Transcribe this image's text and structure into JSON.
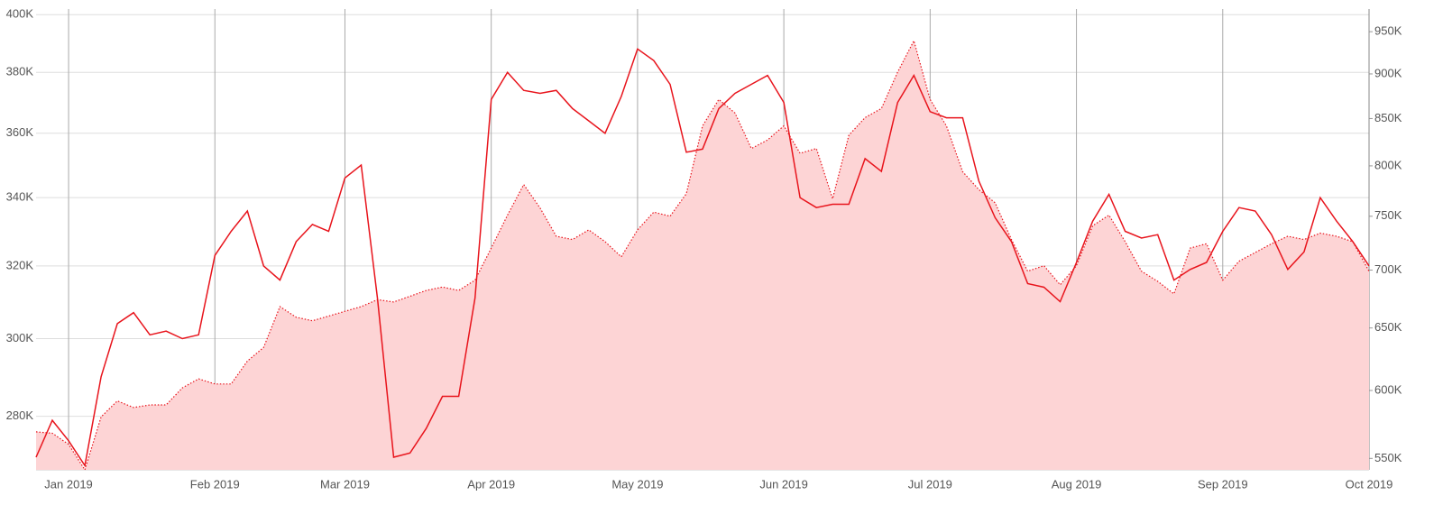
{
  "chart_data": {
    "type": "line",
    "categories": [
      null,
      null,
      "Jan 2019",
      null,
      null,
      null,
      null,
      null,
      null,
      null,
      null,
      "Feb 2019",
      null,
      null,
      null,
      null,
      null,
      null,
      null,
      "Mar 2019",
      null,
      null,
      null,
      null,
      null,
      null,
      null,
      null,
      "Apr 2019",
      null,
      null,
      null,
      null,
      null,
      null,
      null,
      null,
      "May 2019",
      null,
      null,
      null,
      null,
      null,
      null,
      null,
      null,
      "Jun 2019",
      null,
      null,
      null,
      null,
      null,
      null,
      null,
      null,
      "Jul 2019",
      null,
      null,
      null,
      null,
      null,
      null,
      null,
      null,
      "Aug 2019",
      null,
      null,
      null,
      null,
      null,
      null,
      null,
      null,
      "Sep 2019",
      null,
      null,
      null,
      null,
      null,
      null,
      null,
      null,
      "Oct 2019"
    ],
    "series": [
      {
        "type": "line",
        "color": "#e8141c",
        "values": [
          270000,
          279000,
          274000,
          268000,
          290000,
          304000,
          307000,
          301000,
          302000,
          300000,
          301000,
          323000,
          330000,
          336000,
          320000,
          316000,
          327000,
          332000,
          330000,
          346000,
          350000,
          311000,
          270000,
          271000,
          277000,
          285000,
          285000,
          311000,
          371000,
          380000,
          374000,
          373000,
          374000,
          368000,
          364000,
          360000,
          372000,
          388000,
          384000,
          376000,
          354000,
          355000,
          368000,
          373000,
          376000,
          379000,
          370000,
          340000,
          337000,
          338000,
          338000,
          352000,
          348000,
          370000,
          379000,
          367000,
          365000,
          365000,
          345000,
          334000,
          327000,
          315000,
          314000,
          310000,
          321000,
          333000,
          341000,
          330000,
          328000,
          329000,
          316000,
          319000,
          321000,
          330000,
          337000,
          336000,
          329000,
          319000,
          324000,
          340000,
          333000,
          327000,
          320000
        ]
      },
      {
        "type": "area",
        "axis": "y2",
        "color": "#e8141c",
        "fill": "#fdd4d5",
        "values": [
          569000,
          568000,
          560000,
          542000,
          580000,
          592000,
          587000,
          589000,
          589000,
          602000,
          609000,
          605000,
          605000,
          623000,
          634000,
          668000,
          659000,
          656000,
          660000,
          664000,
          668000,
          674000,
          672000,
          677000,
          682000,
          685000,
          682000,
          691000,
          720000,
          751000,
          781000,
          758000,
          731000,
          728000,
          737000,
          726000,
          712000,
          737000,
          754000,
          750000,
          772000,
          842000,
          871000,
          856000,
          818000,
          827000,
          842000,
          813000,
          818000,
          767000,
          832000,
          851000,
          861000,
          902000,
          939000,
          871000,
          842000,
          794000,
          776000,
          763000,
          728000,
          699000,
          704000,
          687000,
          704000,
          741000,
          751000,
          726000,
          699000,
          690000,
          679000,
          720000,
          724000,
          691000,
          708000,
          716000,
          724000,
          731000,
          728000,
          734000,
          731000,
          726000,
          699000
        ]
      }
    ],
    "ylim": [
      267000,
      402000
    ],
    "yticks": [
      {
        "value": 280000,
        "label": "280K"
      },
      {
        "value": 300000,
        "label": "300K"
      },
      {
        "value": 320000,
        "label": "320K"
      },
      {
        "value": 340000,
        "label": "340K"
      },
      {
        "value": 360000,
        "label": "360K"
      },
      {
        "value": 380000,
        "label": "380K"
      },
      {
        "value": 400000,
        "label": "400K"
      }
    ],
    "y2lim": [
      542000,
      978000
    ],
    "y2ticks": [
      {
        "value": 550000,
        "label": "550K"
      },
      {
        "value": 600000,
        "label": "600K"
      },
      {
        "value": 650000,
        "label": "650K"
      },
      {
        "value": 700000,
        "label": "700K"
      },
      {
        "value": 750000,
        "label": "750K"
      },
      {
        "value": 800000,
        "label": "800K"
      },
      {
        "value": 850000,
        "label": "850K"
      },
      {
        "value": 900000,
        "label": "900K"
      },
      {
        "value": 950000,
        "label": "950K"
      }
    ],
    "log_scale": true,
    "grid": true
  }
}
